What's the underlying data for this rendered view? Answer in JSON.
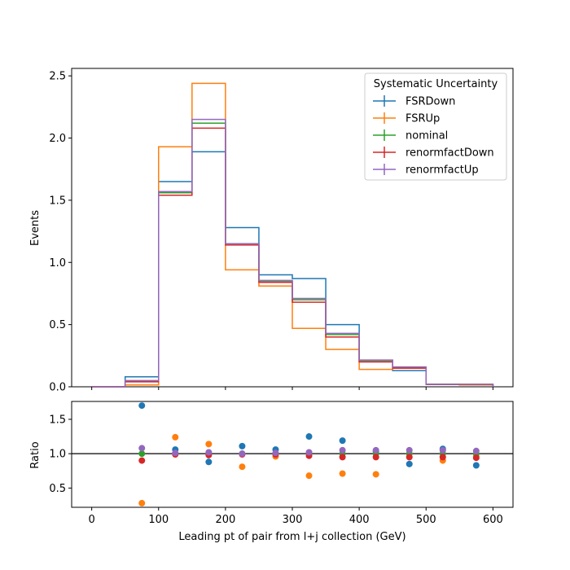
{
  "chart_data": {
    "type": "step-histogram-with-ratio",
    "bin_edges": [
      0,
      50,
      100,
      150,
      200,
      250,
      300,
      350,
      400,
      450,
      500,
      550,
      600
    ],
    "x_ticks": [
      0,
      100,
      200,
      300,
      400,
      500,
      600
    ],
    "x_tick_labels": [
      "0",
      "100",
      "200",
      "300",
      "400",
      "500",
      "600"
    ],
    "xlim": [
      -30,
      630
    ],
    "xlabel": "Leading pt of pair from l+j collection (GeV)",
    "main": {
      "ylabel": "Events",
      "ylim": [
        0,
        2.56
      ],
      "y_ticks": [
        0,
        0.5,
        1.0,
        1.5,
        2.0,
        2.5
      ],
      "y_tick_labels": [
        "0.0",
        "0.5",
        "1.0",
        "1.5",
        "2.0",
        "2.5"
      ]
    },
    "ratio": {
      "ylabel": "Ratio",
      "ylim": [
        0.22,
        1.76
      ],
      "y_ticks": [
        0.5,
        1.0,
        1.5
      ],
      "y_tick_labels": [
        "0.5",
        "1.0",
        "1.5"
      ],
      "reference_line": 1.0,
      "point_x": [
        75,
        125,
        175,
        225,
        275,
        325,
        375,
        425,
        475,
        525,
        575
      ]
    },
    "legend": {
      "title": "Systematic Uncertainty",
      "location": "upper right"
    },
    "series": [
      {
        "name": "FSRDown",
        "color": "#1f77b4",
        "values": [
          0.0,
          0.08,
          1.65,
          1.89,
          1.28,
          0.9,
          0.87,
          0.5,
          0.21,
          0.13,
          0.02,
          0.015
        ],
        "ratio": [
          1.7,
          1.06,
          0.88,
          1.11,
          1.06,
          1.25,
          1.19,
          1.03,
          0.85,
          1.07,
          0.83
        ]
      },
      {
        "name": "FSRUp",
        "color": "#ff7f0e",
        "values": [
          0.0,
          0.015,
          1.93,
          2.44,
          0.94,
          0.81,
          0.47,
          0.3,
          0.14,
          0.15,
          0.02,
          0.015
        ],
        "ratio": [
          0.28,
          1.24,
          1.14,
          0.81,
          0.96,
          0.68,
          0.71,
          0.7,
          1.0,
          0.9,
          0.96
        ]
      },
      {
        "name": "nominal",
        "color": "#2ca02c",
        "values": [
          0.0,
          0.045,
          1.56,
          2.12,
          1.15,
          0.85,
          0.7,
          0.42,
          0.21,
          0.155,
          0.02,
          0.02
        ],
        "ratio": [
          1.0,
          1.0,
          1.0,
          1.0,
          1.0,
          1.0,
          1.0,
          1.0,
          1.0,
          1.0,
          1.0
        ]
      },
      {
        "name": "renormfactDown",
        "color": "#d62728",
        "values": [
          0.0,
          0.04,
          1.54,
          2.08,
          1.14,
          0.84,
          0.68,
          0.4,
          0.2,
          0.15,
          0.02,
          0.02
        ],
        "ratio": [
          0.9,
          0.99,
          0.98,
          0.99,
          0.99,
          0.97,
          0.95,
          0.95,
          0.95,
          0.95,
          0.94
        ]
      },
      {
        "name": "renormfactUp",
        "color": "#9467bd",
        "values": [
          0.0,
          0.05,
          1.57,
          2.15,
          1.15,
          0.855,
          0.71,
          0.43,
          0.215,
          0.16,
          0.02,
          0.02
        ],
        "ratio": [
          1.08,
          1.01,
          1.02,
          1.0,
          1.01,
          1.02,
          1.05,
          1.05,
          1.05,
          1.05,
          1.04
        ]
      }
    ]
  }
}
